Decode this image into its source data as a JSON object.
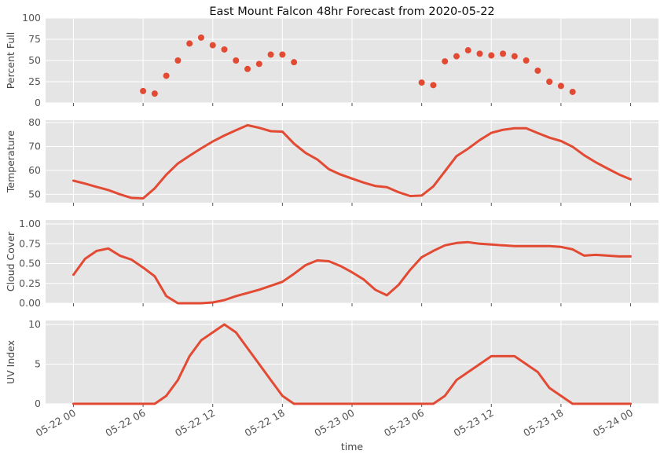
{
  "title": "East Mount Falcon 48hr Forecast from 2020-05-22",
  "colors": {
    "series": "#e24a33",
    "panel": "#e5e5e5",
    "grid": "#ffffff"
  },
  "chart_data": {
    "type": "multi-panel",
    "title": "East Mount Falcon 48hr Forecast from 2020-05-22",
    "xlabel": "time",
    "x_unit": "hours from 2020-05-22 00:00",
    "xlim": [
      -2.4,
      50.4
    ],
    "x_ticks": [
      0,
      6,
      12,
      18,
      24,
      30,
      36,
      42,
      48
    ],
    "x_tick_labels": [
      "05-22 00",
      "05-22 06",
      "05-22 12",
      "05-22 18",
      "05-23 00",
      "05-23 06",
      "05-23 12",
      "05-23 18",
      "05-24 00"
    ],
    "grid": true,
    "panels": [
      {
        "type": "scatter",
        "ylabel": "Percent Full",
        "ylim": [
          0,
          100
        ],
        "y_ticks": [
          0,
          25,
          50,
          75,
          100
        ],
        "y_tick_labels": [
          "0",
          "25",
          "50",
          "75",
          "100"
        ],
        "x": [
          6,
          7,
          8,
          9,
          10,
          11,
          12,
          13,
          14,
          15,
          16,
          17,
          18,
          19,
          30,
          31,
          32,
          33,
          34,
          35,
          36,
          37,
          38,
          39,
          40,
          41,
          42,
          43
        ],
        "y": [
          14,
          11,
          32,
          50,
          70,
          77,
          68,
          63,
          50,
          40,
          46,
          57,
          57,
          48,
          24,
          21,
          49,
          55,
          62,
          58,
          56,
          58,
          55,
          50,
          38,
          25,
          20,
          13
        ]
      },
      {
        "type": "line",
        "ylabel": "Temperature",
        "ylim": [
          46.5,
          81
        ],
        "y_ticks": [
          50,
          60,
          70,
          80
        ],
        "y_tick_labels": [
          "50",
          "60",
          "70",
          "80"
        ],
        "x": [
          0,
          1,
          2,
          3,
          4,
          5,
          6,
          7,
          8,
          9,
          10,
          11,
          12,
          13,
          14,
          15,
          16,
          17,
          18,
          19,
          20,
          21,
          22,
          23,
          24,
          25,
          26,
          27,
          28,
          29,
          30,
          31,
          32,
          33,
          34,
          35,
          36,
          37,
          38,
          39,
          40,
          41,
          42,
          43,
          44,
          45,
          46,
          47,
          48
        ],
        "y": [
          55.7,
          54.5,
          53.1,
          51.8,
          50.0,
          48.5,
          48.3,
          52.5,
          58.2,
          62.9,
          66.1,
          69.2,
          72.1,
          74.6,
          76.8,
          78.9,
          77.8,
          76.4,
          76.2,
          71.2,
          67.3,
          64.6,
          60.5,
          58.3,
          56.6,
          54.9,
          53.5,
          53.0,
          50.9,
          49.3,
          49.5,
          53.3,
          59.6,
          66.0,
          69.1,
          72.7,
          75.7,
          77.0,
          77.6,
          77.6,
          75.6,
          73.7,
          72.3,
          69.9,
          66.3,
          63.4,
          60.8,
          58.3,
          56.3
        ]
      },
      {
        "type": "line",
        "ylabel": "Cloud Cover",
        "ylim": [
          0,
          1.05
        ],
        "y_ticks": [
          0,
          0.25,
          0.5,
          0.75,
          1.0
        ],
        "y_tick_labels": [
          "0.00",
          "0.25",
          "0.50",
          "0.75",
          "1.00"
        ],
        "x": [
          0,
          1,
          2,
          3,
          4,
          5,
          6,
          7,
          8,
          9,
          10,
          11,
          12,
          13,
          14,
          15,
          16,
          17,
          18,
          19,
          20,
          21,
          22,
          23,
          24,
          25,
          26,
          27,
          28,
          29,
          30,
          31,
          32,
          33,
          34,
          35,
          36,
          37,
          38,
          39,
          40,
          41,
          42,
          43,
          44,
          45,
          46,
          47,
          48
        ],
        "y": [
          0.36,
          0.56,
          0.66,
          0.69,
          0.6,
          0.55,
          0.45,
          0.34,
          0.09,
          0.0,
          0.0,
          0.0,
          0.01,
          0.04,
          0.09,
          0.13,
          0.17,
          0.22,
          0.27,
          0.37,
          0.48,
          0.54,
          0.53,
          0.47,
          0.39,
          0.3,
          0.17,
          0.1,
          0.23,
          0.42,
          0.58,
          0.66,
          0.73,
          0.76,
          0.77,
          0.75,
          0.74,
          0.73,
          0.72,
          0.72,
          0.72,
          0.72,
          0.71,
          0.68,
          0.6,
          0.61,
          0.6,
          0.59,
          0.59
        ]
      },
      {
        "type": "line",
        "ylabel": "UV Index",
        "ylim": [
          0,
          10.5
        ],
        "y_ticks": [
          0,
          5,
          10
        ],
        "y_tick_labels": [
          "0",
          "5",
          "10"
        ],
        "x": [
          0,
          1,
          2,
          3,
          4,
          5,
          6,
          7,
          8,
          9,
          10,
          11,
          12,
          13,
          14,
          15,
          16,
          17,
          18,
          19,
          20,
          21,
          22,
          23,
          24,
          25,
          26,
          27,
          28,
          29,
          30,
          31,
          32,
          33,
          34,
          35,
          36,
          37,
          38,
          39,
          40,
          41,
          42,
          43,
          44,
          45,
          46,
          47,
          48
        ],
        "y": [
          0,
          0,
          0,
          0,
          0,
          0,
          0,
          0,
          1,
          3,
          6,
          8,
          9,
          10,
          9,
          7,
          5,
          3,
          1,
          0,
          0,
          0,
          0,
          0,
          0,
          0,
          0,
          0,
          0,
          0,
          0,
          0,
          1,
          3,
          4,
          5,
          6,
          6,
          6,
          5,
          4,
          2,
          1,
          0,
          0,
          0,
          0,
          0,
          0
        ]
      }
    ]
  }
}
